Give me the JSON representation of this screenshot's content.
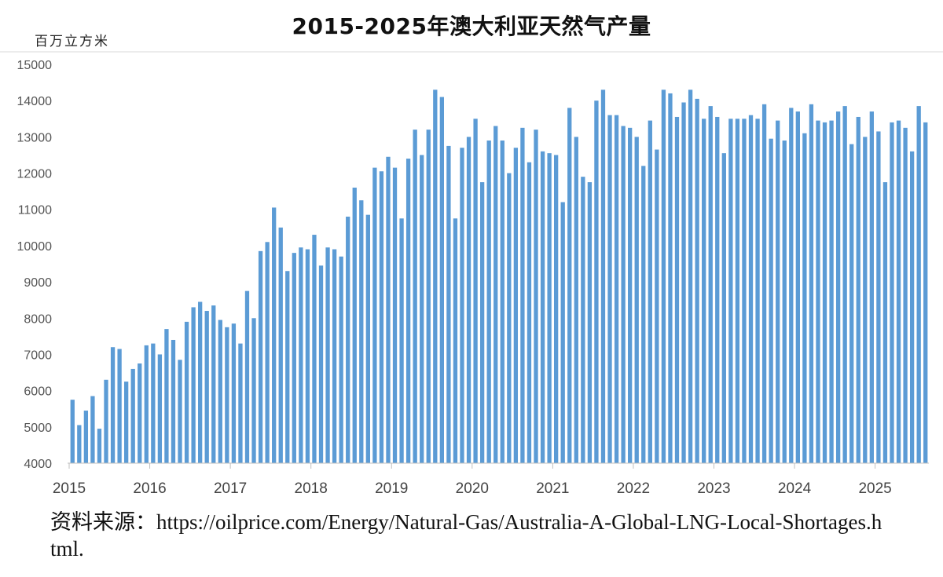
{
  "chart_data": {
    "type": "bar",
    "title": "2015-2025年澳大利亚天然气产量",
    "ylabel": "百万立方米",
    "ylim": [
      4000,
      15000
    ],
    "yticks": [
      4000,
      5000,
      6000,
      7000,
      8000,
      9000,
      10000,
      11000,
      12000,
      13000,
      14000,
      15000
    ],
    "xticks": [
      "2015",
      "2016",
      "2017",
      "2018",
      "2019",
      "2020",
      "2021",
      "2022",
      "2023",
      "2024",
      "2025"
    ],
    "grid": false,
    "bar_color": "#5b9bd5",
    "series": [
      {
        "values": [
          5750,
          5050,
          5450,
          5850,
          4950,
          6300,
          7200,
          7150,
          6250,
          6600,
          6750,
          7250,
          7300,
          7000,
          7700,
          7400,
          6850,
          7900,
          8300,
          8450,
          8200,
          8350,
          7950,
          7750,
          7850,
          7300,
          8750,
          8000,
          9850,
          10100,
          11050,
          10500,
          9300,
          9800,
          9950,
          9900,
          10300,
          9450,
          9950,
          9900,
          9700,
          10800,
          11600,
          11250,
          10850,
          12150,
          12050,
          12450,
          12150,
          10750,
          12400,
          13200,
          12500,
          13200,
          14300,
          14100,
          12750,
          10750,
          12700,
          13000,
          13500,
          11750,
          12900,
          13300,
          12900,
          12000,
          12700,
          13250,
          12300,
          13200,
          12600,
          12550,
          12500,
          11200,
          13800,
          13000,
          11900,
          11750,
          14000,
          14300,
          13600,
          13600,
          13300,
          13250,
          13000,
          12200,
          13450,
          12650,
          14300,
          14200,
          13550,
          13950,
          14300,
          14050,
          13500,
          13850,
          13550,
          12550,
          13500,
          13500,
          13500,
          13600,
          13500,
          13900,
          12950,
          13450,
          12900,
          13800,
          13700,
          13100,
          13900,
          13450,
          13400,
          13450,
          13700,
          13850,
          12800,
          13550,
          13000,
          13700,
          13150,
          11750,
          13400,
          13450,
          13250,
          12600,
          13850,
          13400
        ]
      }
    ],
    "start_year": 2015
  },
  "source": "资料来源：https://oilprice.com/Energy/Natural-Gas/Australia-A-Global-LNG-Local-Shortages.html."
}
